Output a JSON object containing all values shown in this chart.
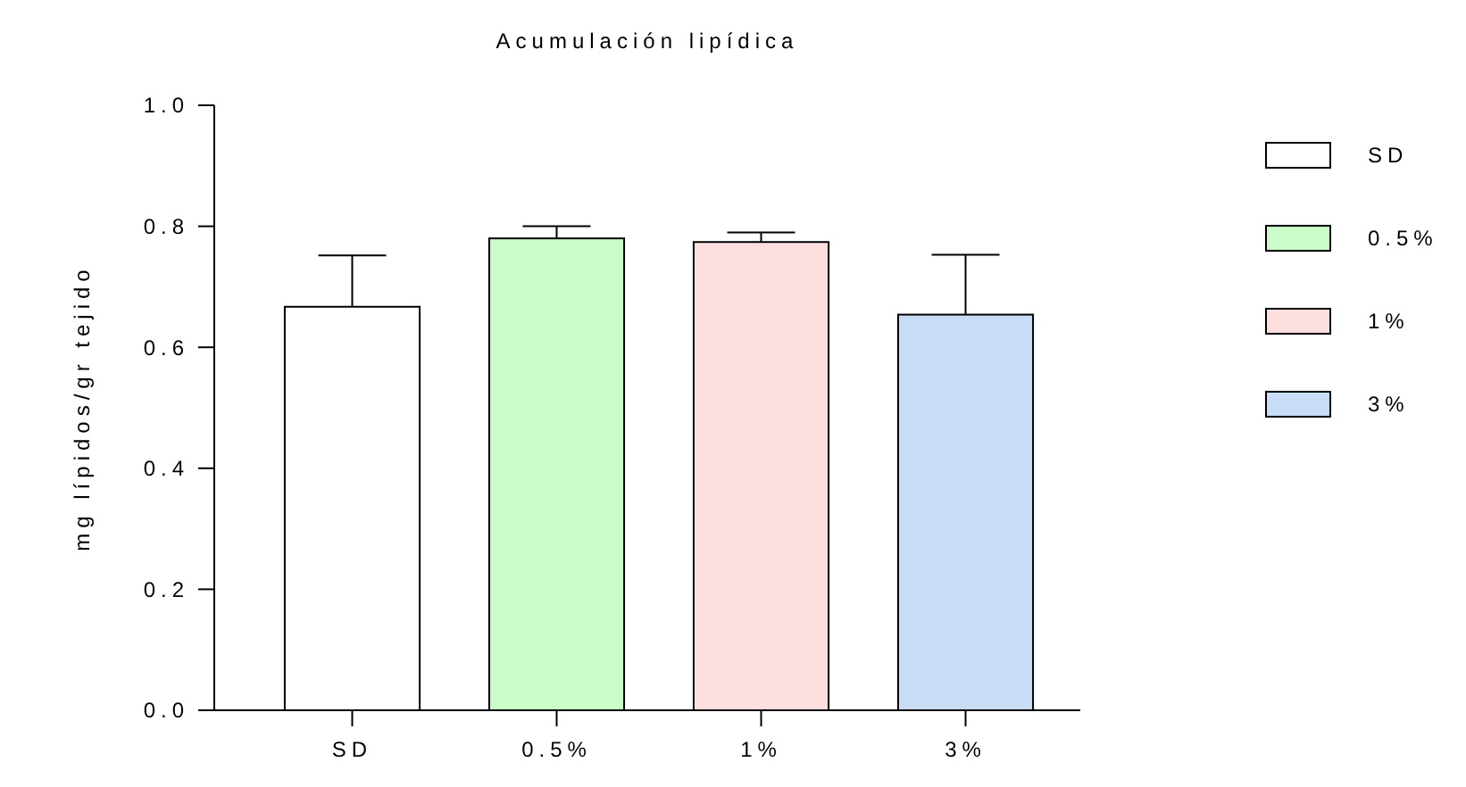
{
  "chart_data": {
    "type": "bar",
    "title": "Acumulación lipídica",
    "ylabel": "mg lípidos/gr tejido",
    "categories": [
      "SD",
      "0.5%",
      "1%",
      "3%"
    ],
    "series": [
      {
        "name": "SD",
        "color": "#ffffff",
        "values": [
          0.667,
          null,
          null,
          null
        ],
        "errors": [
          [
            0.667,
            0.752
          ],
          null,
          null,
          null
        ]
      },
      {
        "name": "0.5%",
        "color": "#c9fcc8",
        "values": [
          null,
          0.78,
          null,
          null
        ],
        "errors": [
          null,
          [
            0.78,
            0.8
          ],
          null,
          null
        ]
      },
      {
        "name": "1%",
        "color": "#fddfe0",
        "values": [
          null,
          null,
          0.774,
          null
        ],
        "errors": [
          null,
          null,
          [
            0.774,
            0.79
          ],
          null
        ]
      },
      {
        "name": "3%",
        "color": "#c8dcf5",
        "values": [
          null,
          null,
          null,
          0.654
        ],
        "errors": [
          null,
          null,
          null,
          [
            0.654,
            0.753
          ]
        ]
      }
    ],
    "ylim": [
      0,
      1
    ],
    "yticks": [
      {
        "value": 0,
        "label": "0.0"
      },
      {
        "value": 0.2,
        "label": "0.2"
      },
      {
        "value": 0.4,
        "label": "0.4"
      },
      {
        "value": 0.6,
        "label": "0.6"
      },
      {
        "value": 0.8,
        "label": "0.8"
      },
      {
        "value": 1,
        "label": "1.0"
      }
    ],
    "legend": "right"
  }
}
